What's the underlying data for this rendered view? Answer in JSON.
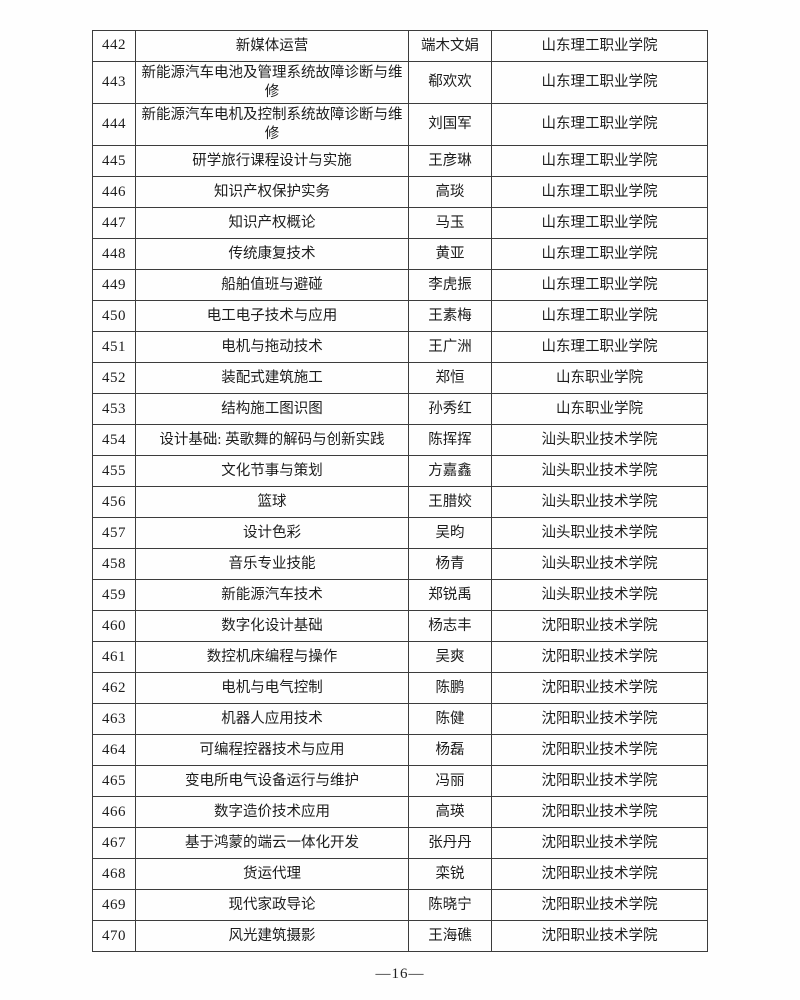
{
  "page": {
    "footer": "—16—"
  },
  "table": {
    "rows": [
      {
        "no": "442",
        "course": "新媒体运营",
        "teacher": "端木文娟",
        "school": "山东理工职业学院"
      },
      {
        "no": "443",
        "course": "新能源汽车电池及管理系统故障诊断与维修",
        "teacher": "郗欢欢",
        "school": "山东理工职业学院"
      },
      {
        "no": "444",
        "course": "新能源汽车电机及控制系统故障诊断与维修",
        "teacher": "刘国军",
        "school": "山东理工职业学院"
      },
      {
        "no": "445",
        "course": "研学旅行课程设计与实施",
        "teacher": "王彦琳",
        "school": "山东理工职业学院"
      },
      {
        "no": "446",
        "course": "知识产权保护实务",
        "teacher": "高琰",
        "school": "山东理工职业学院"
      },
      {
        "no": "447",
        "course": "知识产权概论",
        "teacher": "马玉",
        "school": "山东理工职业学院"
      },
      {
        "no": "448",
        "course": "传统康复技术",
        "teacher": "黄亚",
        "school": "山东理工职业学院"
      },
      {
        "no": "449",
        "course": "船舶值班与避碰",
        "teacher": "李虎振",
        "school": "山东理工职业学院"
      },
      {
        "no": "450",
        "course": "电工电子技术与应用",
        "teacher": "王素梅",
        "school": "山东理工职业学院"
      },
      {
        "no": "451",
        "course": "电机与拖动技术",
        "teacher": "王广洲",
        "school": "山东理工职业学院"
      },
      {
        "no": "452",
        "course": "装配式建筑施工",
        "teacher": "郑恒",
        "school": "山东职业学院"
      },
      {
        "no": "453",
        "course": "结构施工图识图",
        "teacher": "孙秀红",
        "school": "山东职业学院"
      },
      {
        "no": "454",
        "course": "设计基础: 英歌舞的解码与创新实践",
        "teacher": "陈挥挥",
        "school": "汕头职业技术学院"
      },
      {
        "no": "455",
        "course": "文化节事与策划",
        "teacher": "方嘉鑫",
        "school": "汕头职业技术学院"
      },
      {
        "no": "456",
        "course": "篮球",
        "teacher": "王腊姣",
        "school": "汕头职业技术学院"
      },
      {
        "no": "457",
        "course": "设计色彩",
        "teacher": "吴昀",
        "school": "汕头职业技术学院"
      },
      {
        "no": "458",
        "course": "音乐专业技能",
        "teacher": "杨青",
        "school": "汕头职业技术学院"
      },
      {
        "no": "459",
        "course": "新能源汽车技术",
        "teacher": "郑锐禹",
        "school": "汕头职业技术学院"
      },
      {
        "no": "460",
        "course": "数字化设计基础",
        "teacher": "杨志丰",
        "school": "沈阳职业技术学院"
      },
      {
        "no": "461",
        "course": "数控机床编程与操作",
        "teacher": "吴爽",
        "school": "沈阳职业技术学院"
      },
      {
        "no": "462",
        "course": "电机与电气控制",
        "teacher": "陈鹏",
        "school": "沈阳职业技术学院"
      },
      {
        "no": "463",
        "course": "机器人应用技术",
        "teacher": "陈健",
        "school": "沈阳职业技术学院"
      },
      {
        "no": "464",
        "course": "可编程控器技术与应用",
        "teacher": "杨磊",
        "school": "沈阳职业技术学院"
      },
      {
        "no": "465",
        "course": "变电所电气设备运行与维护",
        "teacher": "冯丽",
        "school": "沈阳职业技术学院"
      },
      {
        "no": "466",
        "course": "数字造价技术应用",
        "teacher": "高瑛",
        "school": "沈阳职业技术学院"
      },
      {
        "no": "467",
        "course": "基于鸿蒙的端云一体化开发",
        "teacher": "张丹丹",
        "school": "沈阳职业技术学院"
      },
      {
        "no": "468",
        "course": "货运代理",
        "teacher": "栾锐",
        "school": "沈阳职业技术学院"
      },
      {
        "no": "469",
        "course": "现代家政导论",
        "teacher": "陈晓宁",
        "school": "沈阳职业技术学院"
      },
      {
        "no": "470",
        "course": "风光建筑摄影",
        "teacher": "王海礁",
        "school": "沈阳职业技术学院"
      }
    ]
  }
}
